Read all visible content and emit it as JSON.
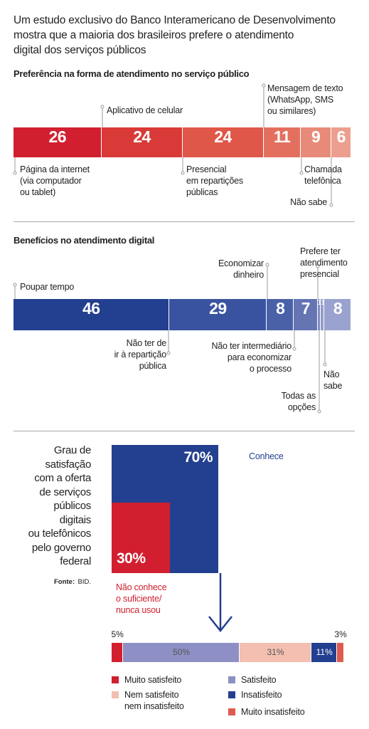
{
  "headline": "Um estudo exclusivo do Banco Interamericano de Desenvolvimento\nmostra que a maioria dos brasileiros prefere o atendimento\ndigital dos serviços públicos",
  "source_label": "Fonte:",
  "source": "BID.",
  "chart_data": [
    {
      "type": "bar",
      "stacked": true,
      "orientation": "horizontal",
      "xlim": [
        0,
        100
      ],
      "title": "Preferência na forma de atendimento no serviço público",
      "series": [
        {
          "name": "Página da internet\n(via computador\nou tablet)",
          "color": "#d11f2f",
          "values": [
            26
          ]
        },
        {
          "name": "Aplicativo de celular",
          "color": "#d93a37",
          "values": [
            24
          ]
        },
        {
          "name": "Presencial\nem repartições\npúblicas",
          "color": "#df5748",
          "values": [
            24
          ]
        },
        {
          "name": "Mensagem de texto\n(WhatsApp, SMS\nou similares)",
          "color": "#e3705f",
          "values": [
            11
          ]
        },
        {
          "name": "Chamada\ntelefônica",
          "color": "#e88a79",
          "values": [
            9
          ]
        },
        {
          "name": "Não sabe",
          "color": "#ec9f8f",
          "values": [
            6
          ]
        }
      ]
    },
    {
      "type": "bar",
      "stacked": true,
      "orientation": "horizontal",
      "xlim": [
        0,
        100
      ],
      "title": "Benefícios no atendimento digital",
      "series": [
        {
          "name": "Poupar tempo",
          "color": "#233f8f",
          "values": [
            46
          ]
        },
        {
          "name": "Não ter de\nir à repartição\npública",
          "color": "#3a53a0",
          "values": [
            29
          ]
        },
        {
          "name": "Economizar\ndinheiro",
          "color": "#4a61a8",
          "values": [
            8
          ]
        },
        {
          "name": "Não ter intermediário\npara economizar\no processo",
          "color": "#6575b4",
          "values": [
            7
          ]
        },
        {
          "name": "Prefere ter\natendimento\npresencial",
          "color": "#7f8bc0",
          "values": [
            1
          ]
        },
        {
          "name": "Todas as\nopções",
          "color": "#939dca",
          "values": [
            1
          ]
        },
        {
          "name": "Não\nsabe",
          "color": "#9aa3cf",
          "values": [
            8
          ]
        }
      ]
    },
    {
      "type": "square",
      "title": "Grau de\nsatisfação\ncom a oferta\nde serviços\npúblicos\ndigitais\nou telefônicos\npelo governo\nfederal",
      "series": [
        {
          "name": "Conhece",
          "color": "#233f8f",
          "values": [
            70
          ],
          "value_labels": [
            "70%"
          ]
        },
        {
          "name": "Não conhece\no suficiente/\nnunca usou",
          "color": "#d11f2f",
          "values": [
            30
          ],
          "value_labels": [
            "30%"
          ]
        }
      ]
    },
    {
      "type": "bar",
      "stacked": true,
      "orientation": "horizontal",
      "xlim": [
        0,
        100
      ],
      "series": [
        {
          "name": "Muito satisfeito",
          "color": "#d11f2f",
          "values": [
            5
          ],
          "value_labels": [
            "5%"
          ]
        },
        {
          "name": "Satisfeito",
          "color": "#8e8fc4",
          "values": [
            50
          ],
          "value_labels": [
            "50%"
          ]
        },
        {
          "name": "Nem satisfeito\nnem insatisfeito",
          "color": "#f2bfb0",
          "values": [
            31
          ],
          "value_labels": [
            "31%"
          ]
        },
        {
          "name": "Insatisfeito",
          "color": "#233f8f",
          "values": [
            11
          ],
          "value_labels": [
            "11%"
          ]
        },
        {
          "name": "Muito insatisfeito",
          "color": "#e05a4f",
          "values": [
            3
          ],
          "value_labels": [
            "3%"
          ]
        }
      ]
    }
  ]
}
